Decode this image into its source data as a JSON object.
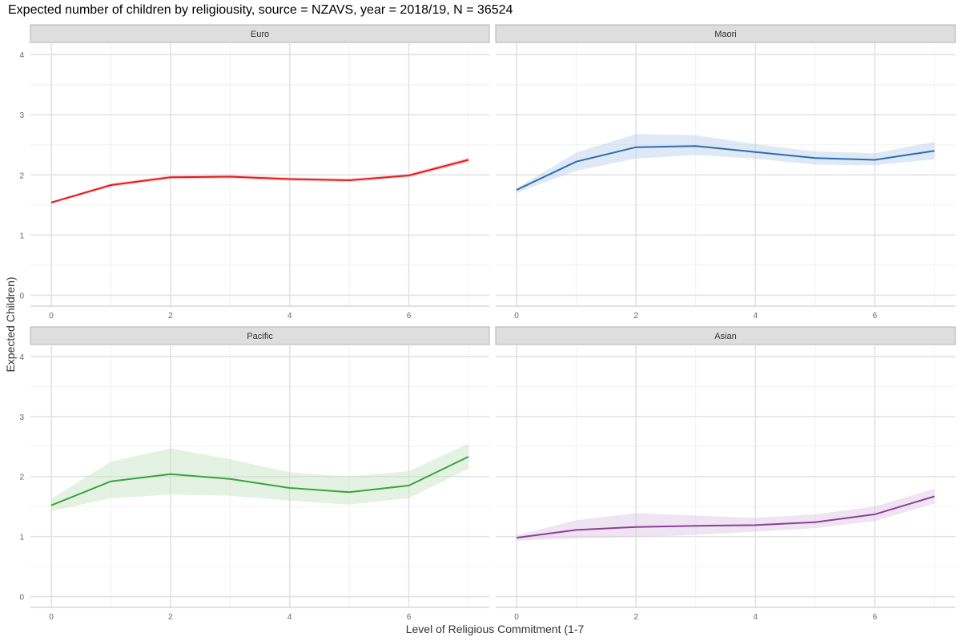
{
  "title": "Expected number of children by religiousity, source = NZAVS, year = 2018/19, N = 36524",
  "chart_data": {
    "type": "line",
    "title": "Expected number of children by religiousity, source = NZAVS, year = 2018/19, N = 36524",
    "xlabel": "Level of Religious Commitment (1-7",
    "ylabel": "Expected Children)",
    "xlim": [
      -0.35,
      7.35
    ],
    "ylim": [
      -0.18,
      4.2
    ],
    "x_ticks": [
      0,
      2,
      4,
      6
    ],
    "y_ticks": [
      0,
      1,
      2,
      3,
      4
    ],
    "grid": true,
    "x": [
      0,
      1,
      2,
      3,
      4,
      5,
      6,
      7
    ],
    "panels": [
      {
        "name": "Euro",
        "color": "#e41a1c",
        "ribbon_color": "#f4a3a8",
        "values": [
          1.54,
          1.83,
          1.96,
          1.97,
          1.93,
          1.91,
          1.99,
          2.25
        ],
        "lower": [
          1.52,
          1.8,
          1.93,
          1.94,
          1.9,
          1.88,
          1.96,
          2.21
        ],
        "upper": [
          1.56,
          1.86,
          1.99,
          2.0,
          1.96,
          1.94,
          2.02,
          2.29
        ]
      },
      {
        "name": "Maori",
        "color": "#2b6cb0",
        "ribbon_color": "#b9cfe8",
        "values": [
          1.75,
          2.22,
          2.46,
          2.48,
          2.38,
          2.28,
          2.25,
          2.4
        ],
        "lower": [
          1.7,
          2.07,
          2.27,
          2.33,
          2.27,
          2.17,
          2.16,
          2.26
        ],
        "upper": [
          1.78,
          2.37,
          2.68,
          2.66,
          2.51,
          2.39,
          2.36,
          2.55
        ]
      },
      {
        "name": "Pacific",
        "color": "#3aa43a",
        "ribbon_color": "#c3e3c0",
        "values": [
          1.52,
          1.92,
          2.04,
          1.96,
          1.81,
          1.74,
          1.85,
          2.33
        ],
        "lower": [
          1.42,
          1.64,
          1.7,
          1.68,
          1.6,
          1.53,
          1.64,
          2.13
        ],
        "upper": [
          1.63,
          2.25,
          2.47,
          2.29,
          2.07,
          2.0,
          2.09,
          2.55
        ]
      },
      {
        "name": "Asian",
        "color": "#8e3f9a",
        "ribbon_color": "#dcc3e2",
        "values": [
          0.98,
          1.11,
          1.16,
          1.18,
          1.19,
          1.24,
          1.37,
          1.67
        ],
        "lower": [
          0.93,
          0.97,
          0.99,
          1.03,
          1.08,
          1.14,
          1.26,
          1.55
        ],
        "upper": [
          1.02,
          1.27,
          1.39,
          1.35,
          1.31,
          1.37,
          1.5,
          1.8
        ]
      }
    ]
  }
}
